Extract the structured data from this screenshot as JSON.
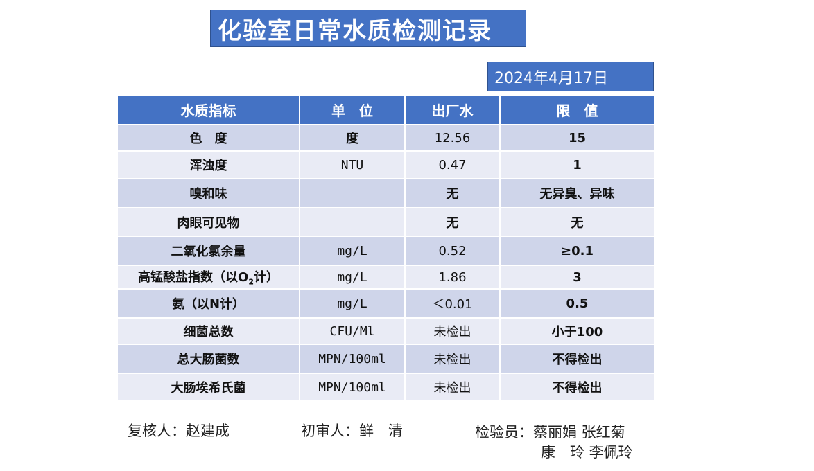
{
  "title": "化验室日常水质检测记录",
  "date": "2024年4月17日",
  "table": {
    "headers": [
      "水质指标",
      "单　位",
      "出厂水",
      "限　值"
    ],
    "rows": [
      {
        "indicator": "色　度",
        "unit": "度",
        "outlet": "12.56",
        "limit": "15"
      },
      {
        "indicator": "浑浊度",
        "unit": "NTU",
        "outlet": "0.47",
        "limit": "1"
      },
      {
        "indicator": "嗅和味",
        "unit": "",
        "outlet": "无",
        "limit": "无异臭、异味"
      },
      {
        "indicator": "肉眼可见物",
        "unit": "",
        "outlet": "无",
        "limit": "无"
      },
      {
        "indicator": "二氧化氯余量",
        "unit": "mg/L",
        "outlet": "0.52",
        "limit": "≥0.1"
      },
      {
        "indicator_prefix": "高锰酸盐指数（以O",
        "indicator_sub": "2",
        "indicator_suffix": "计）",
        "unit": "mg/L",
        "outlet": "1.86",
        "limit": "3"
      },
      {
        "indicator": "氨（以N计）",
        "unit": "mg/L",
        "outlet": "＜0.01",
        "limit": "0.5"
      },
      {
        "indicator": "细菌总数",
        "unit": "CFU/Ml",
        "outlet": "未检出",
        "limit": "小于100"
      },
      {
        "indicator": "总大肠菌数",
        "unit": "MPN/100ml",
        "outlet": "未检出",
        "limit": "不得检出"
      },
      {
        "indicator": "大肠埃希氏菌",
        "unit": "MPN/100ml",
        "outlet": "未检出",
        "limit": "不得检出"
      }
    ]
  },
  "signatures": {
    "reviewer": "复核人：赵建成",
    "first_reviewer": "初审人：鲜　清",
    "inspectors_line1": "检验员：蔡丽娟 张红菊",
    "inspectors_line2": "康　玲 李佩玲"
  },
  "colors": {
    "header_blue": "#4472c4",
    "row_dark": "#cfd5ea",
    "row_light": "#e9ebf5"
  }
}
